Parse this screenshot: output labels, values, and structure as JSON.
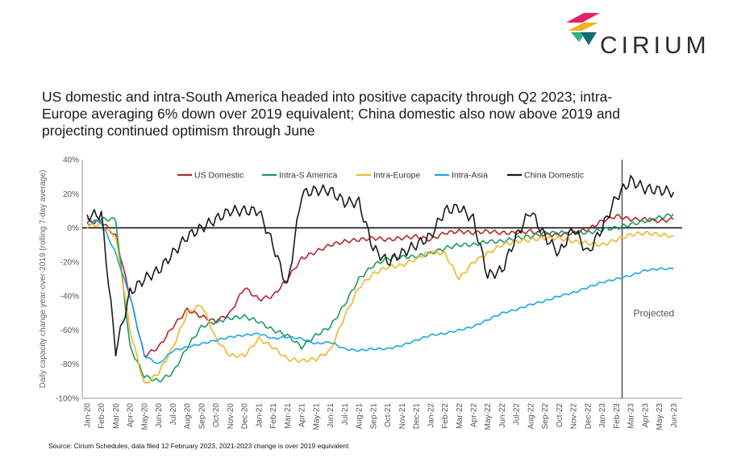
{
  "brand": {
    "name": "CIRIUM",
    "colors": [
      "#e2246b",
      "#f4b31b",
      "#2bb673",
      "#0f6f73"
    ]
  },
  "title": "US domestic and intra-South America headed into positive capacity through Q2 2023; intra-Europe averaging 6% down over 2019 equivalent; China domestic also now above 2019 and projecting continued optimism through June",
  "source": "Source: Cirium Schedules, data filed 12 February 2023, 2021-2023 change is over 2019 equivalent",
  "chart_data": {
    "type": "line",
    "title": "",
    "ylabel": "Daily capacity change year-over-2019 (rolling 7-day average)",
    "xlabel": "",
    "ylim": [
      -100,
      40
    ],
    "yticks": [
      40,
      20,
      0,
      -20,
      -40,
      -60,
      -80,
      -100
    ],
    "ytick_labels": [
      "40%",
      "20%",
      "0%",
      "-20%",
      "-40%",
      "-60%",
      "-80%",
      "-100%"
    ],
    "categories": [
      "Jan-20",
      "Feb-20",
      "Mar-20",
      "Apr-20",
      "May-20",
      "Jun-20",
      "Jul-20",
      "Aug-20",
      "Sep-20",
      "Oct-20",
      "Nov-20",
      "Dec-20",
      "Jan-21",
      "Feb-21",
      "Mar-21",
      "Apr-21",
      "May-21",
      "Jun-21",
      "Jul-21",
      "Aug-21",
      "Sep-21",
      "Oct-21",
      "Nov-21",
      "Dec-21",
      "Jan-22",
      "Feb-22",
      "Mar-22",
      "Apr-22",
      "May-22",
      "Jun-22",
      "Jul-22",
      "Aug-22",
      "Sep-22",
      "Oct-22",
      "Nov-22",
      "Dec-22",
      "Jan-23",
      "Feb-23",
      "Mar-23",
      "Apr-23",
      "May-23",
      "Jun-23"
    ],
    "xlabels_shown": [
      "Jan-20",
      "Feb-20",
      "Mar-20",
      "Apr-20",
      "May-20",
      "Jun-20",
      "Jul-20",
      "Aug-20",
      "Sep-20",
      "Oct-20",
      "Nov-20",
      "Dec-20",
      "Jan-21",
      "Feb-21",
      "Mar-21",
      "Apr-21",
      "May-21",
      "Jun-21",
      "Jul-21",
      "Aug-21",
      "Sep-21",
      "Oct-21",
      "Nov-21",
      "Dec-21",
      "Jan-22",
      "Feb-22",
      "Mar-22",
      "Apr-22",
      "May-22",
      "Jun-22",
      "Jul-22",
      "Aug-22",
      "Sep-22",
      "Oct-22",
      "Nov-22",
      "Dec-22",
      "Jan-23",
      "Feb-23",
      "Mar-23",
      "Apr-23",
      "May-23",
      "Jun-23"
    ],
    "grid": false,
    "legend_position": "top",
    "projection": {
      "label": "Projected",
      "start": "Feb-23"
    },
    "series": [
      {
        "name": "US Domestic",
        "color": "#b5262f",
        "values": [
          3,
          4,
          -5,
          -40,
          -75,
          -70,
          -58,
          -48,
          -52,
          -55,
          -50,
          -35,
          -42,
          -40,
          -30,
          -18,
          -14,
          -10,
          -8,
          -7,
          -6,
          -7,
          -6,
          -5,
          -7,
          -3,
          -2,
          -3,
          -2,
          -3,
          -3,
          -2,
          -4,
          -4,
          -3,
          -1,
          4,
          7,
          5,
          5,
          4,
          5
        ]
      },
      {
        "name": "Intra-S America",
        "color": "#1e9a5e",
        "values": [
          2,
          5,
          5,
          -70,
          -87,
          -90,
          -85,
          -70,
          -58,
          -55,
          -53,
          -52,
          -55,
          -60,
          -63,
          -70,
          -63,
          -58,
          -45,
          -30,
          -22,
          -18,
          -17,
          -17,
          -15,
          -12,
          -10,
          -10,
          -8,
          -8,
          -6,
          -5,
          -3,
          -3,
          -2,
          -3,
          -1,
          0,
          2,
          4,
          6,
          8
        ]
      },
      {
        "name": "Intra-Europe",
        "color": "#f0b62a",
        "values": [
          1,
          2,
          -5,
          -60,
          -92,
          -85,
          -70,
          -50,
          -45,
          -65,
          -75,
          -75,
          -65,
          -70,
          -77,
          -78,
          -77,
          -72,
          -52,
          -35,
          -27,
          -23,
          -22,
          -18,
          -14,
          -15,
          -30,
          -20,
          -15,
          -10,
          -8,
          -7,
          -6,
          -6,
          -8,
          -9,
          -10,
          -7,
          -4,
          -3,
          -4,
          -5
        ]
      },
      {
        "name": "Intra-Asia",
        "color": "#1ca6e2",
        "values": [
          5,
          3,
          -15,
          -40,
          -75,
          -80,
          -72,
          -70,
          -68,
          -66,
          -64,
          -63,
          -62,
          -65,
          -64,
          -65,
          -68,
          -67,
          -71,
          -72,
          -71,
          -71,
          -69,
          -66,
          -63,
          -62,
          -60,
          -58,
          -54,
          -50,
          -48,
          -45,
          -43,
          -40,
          -38,
          -35,
          -32,
          -30,
          -28,
          -25,
          -24,
          -24
        ]
      },
      {
        "name": "China Domestic",
        "color": "#1a1a1a",
        "values": [
          7,
          8,
          -72,
          -38,
          -30,
          -25,
          -15,
          -5,
          0,
          5,
          10,
          10,
          10,
          -10,
          -35,
          20,
          22,
          22,
          15,
          15,
          -12,
          -20,
          -15,
          -10,
          -5,
          10,
          12,
          5,
          -28,
          -25,
          -5,
          10,
          -5,
          -15,
          0,
          -15,
          0,
          18,
          28,
          23,
          22,
          21
        ]
      }
    ]
  }
}
